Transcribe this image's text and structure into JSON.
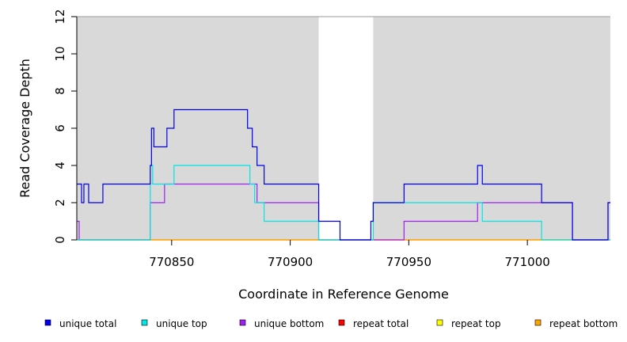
{
  "chart_data": {
    "type": "line",
    "title": "",
    "xlabel": "Coordinate in Reference Genome",
    "ylabel": "Read Coverage Depth",
    "xlim": [
      770810,
      771035
    ],
    "ylim": [
      0,
      12
    ],
    "x_ticks": [
      770850,
      770900,
      770950,
      771000
    ],
    "x_tick_labels": [
      "770850",
      "770900",
      "770950",
      "771000"
    ],
    "y_ticks": [
      0,
      2,
      4,
      6,
      8,
      10,
      12
    ],
    "y_tick_labels": [
      "0",
      "2",
      "4",
      "6",
      "8",
      "10",
      "12"
    ],
    "shaded_regions": [
      [
        770810,
        770912
      ],
      [
        770935,
        771035
      ]
    ],
    "shade_color": "#d9d9d9",
    "legend_position": "bottom",
    "series": [
      {
        "name": "unique total",
        "color": "#0000ee",
        "steps": [
          [
            770810,
            3
          ],
          [
            770812,
            2
          ],
          [
            770813,
            3
          ],
          [
            770815,
            2
          ],
          [
            770821,
            3
          ],
          [
            770841,
            4
          ],
          [
            770841.5,
            6
          ],
          [
            770842.5,
            5
          ],
          [
            770848,
            6
          ],
          [
            770851,
            7
          ],
          [
            770882,
            6
          ],
          [
            770884,
            5
          ],
          [
            770886,
            4
          ],
          [
            770889,
            3
          ],
          [
            770912,
            1
          ],
          [
            770921,
            0
          ],
          [
            770934,
            1
          ],
          [
            770935,
            2
          ],
          [
            770948,
            3
          ],
          [
            770979,
            4
          ],
          [
            770981,
            3
          ],
          [
            771006,
            2
          ],
          [
            771019,
            0
          ],
          [
            771034,
            2
          ]
        ]
      },
      {
        "name": "unique top",
        "color": "#00e5e5",
        "steps": [
          [
            770810,
            0
          ],
          [
            770841,
            4
          ],
          [
            770842,
            3
          ],
          [
            770851,
            4
          ],
          [
            770883,
            3
          ],
          [
            770885,
            2
          ],
          [
            770889,
            1
          ],
          [
            770912,
            0
          ],
          [
            770935,
            2
          ],
          [
            770981,
            1
          ],
          [
            771006,
            0
          ],
          [
            771019,
            0
          ]
        ]
      },
      {
        "name": "unique bottom",
        "color": "#a020f0",
        "steps": [
          [
            770810,
            1
          ],
          [
            770811,
            0
          ],
          [
            770841,
            2
          ],
          [
            770847,
            3
          ],
          [
            770886,
            2
          ],
          [
            770912,
            0
          ],
          [
            770948,
            1
          ],
          [
            770979,
            2
          ],
          [
            771019,
            0
          ],
          [
            771034,
            2
          ]
        ]
      },
      {
        "name": "repeat total",
        "color": "#ff0000",
        "steps": [
          [
            770810,
            0
          ]
        ]
      },
      {
        "name": "repeat top",
        "color": "#ffff00",
        "steps": [
          [
            770810,
            0
          ]
        ]
      },
      {
        "name": "repeat bottom",
        "color": "#ffa500",
        "steps": [
          [
            770810,
            0
          ]
        ]
      }
    ]
  }
}
